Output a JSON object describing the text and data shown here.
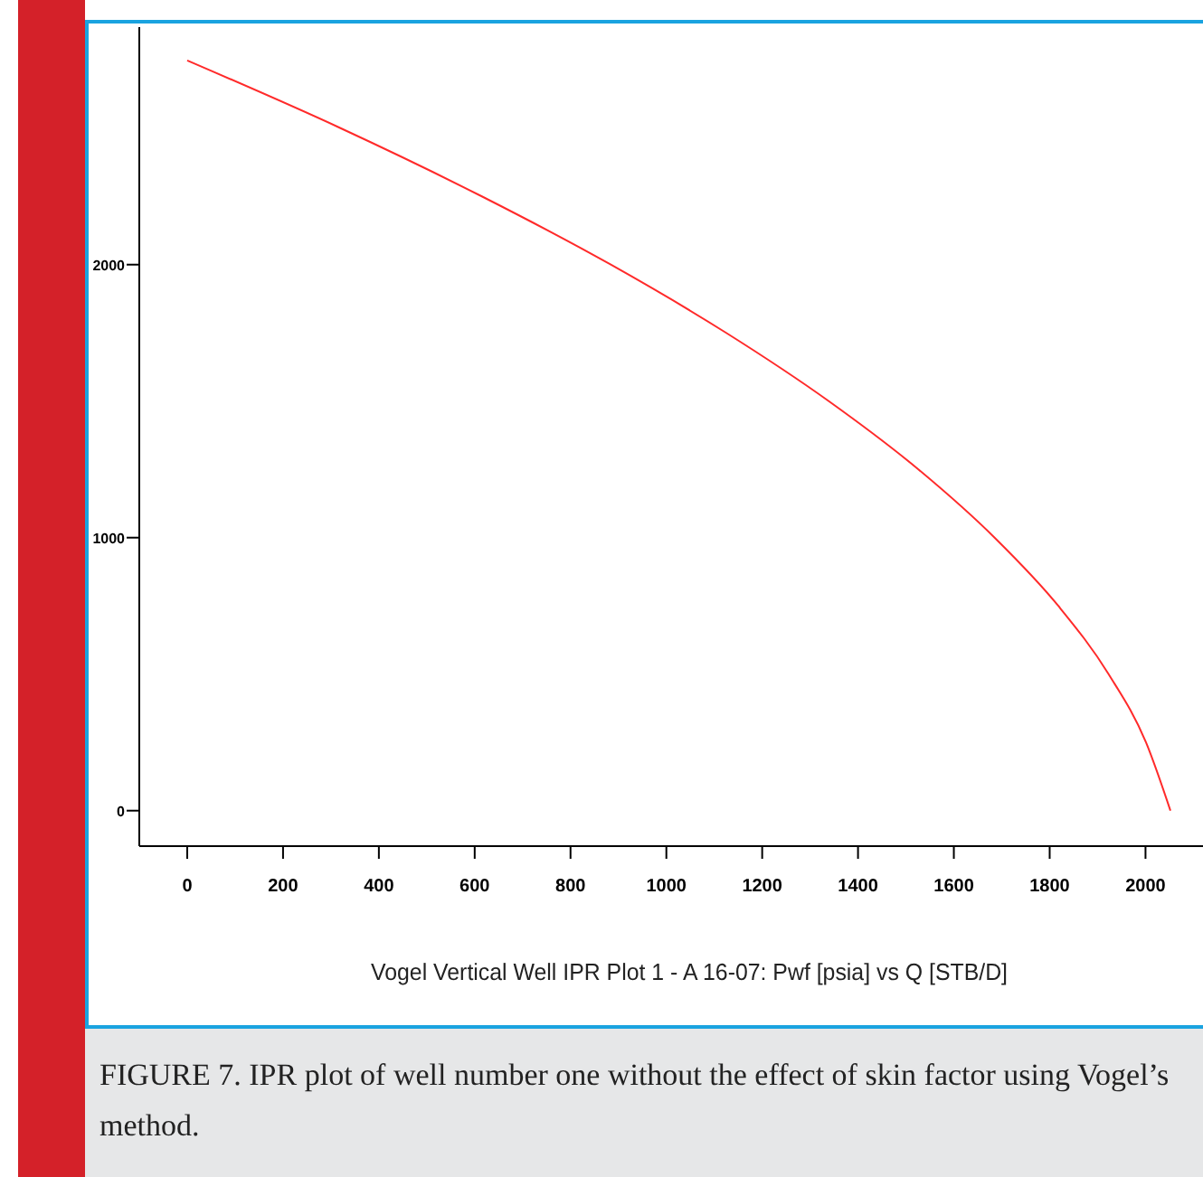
{
  "chart_data": {
    "type": "line",
    "title": "Vogel Vertical Well IPR Plot 1 - A 16-07: Pwf [psia] vs Q [STB/D]",
    "annotations": [
      "FIGURE 7. IPR plot of well number one without the effect of skin factor using Vogel’s method."
    ],
    "x": [
      0,
      320,
      615,
      884,
      1125,
      1339,
      1526,
      1685,
      1818,
      1923,
      2001,
      2052
    ],
    "series": [
      {
        "color": "#ff2a2a",
        "values": [
          2748,
          2500,
          2250,
          2000,
          1750,
          1500,
          1250,
          1000,
          750,
          500,
          250,
          0
        ]
      }
    ],
    "xlim": [
      -100,
      2120
    ],
    "xticks": [
      0,
      200,
      400,
      600,
      800,
      1000,
      1200,
      1400,
      1600,
      1800,
      2000
    ],
    "ylim": [
      -130,
      2870
    ],
    "yticks": [
      0,
      1000,
      2000
    ],
    "marker": "none",
    "line_style": "solid"
  }
}
